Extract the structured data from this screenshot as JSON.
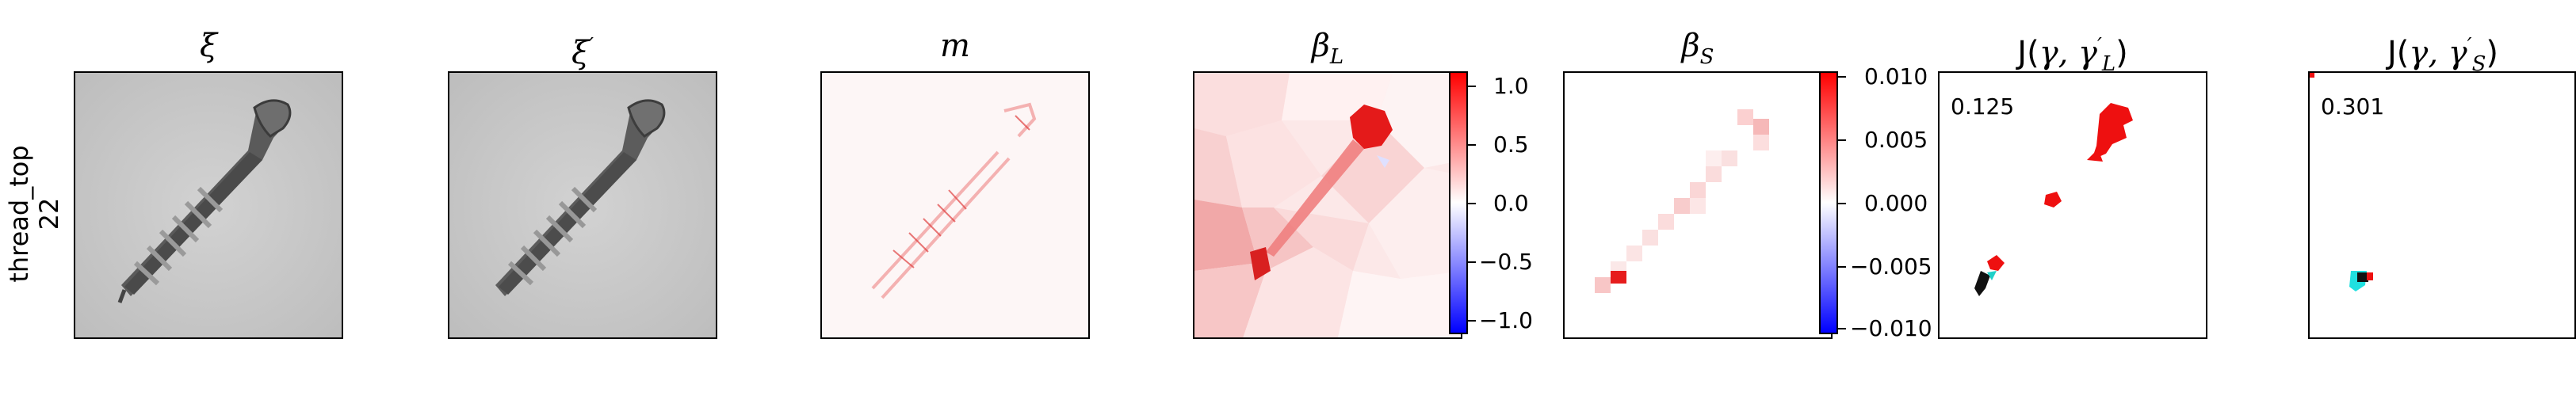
{
  "row_label": {
    "line1": "thread_top",
    "line2": "22"
  },
  "panels": {
    "xi": {
      "title": "ξ"
    },
    "xi_prime": {
      "title": "ξ",
      "title_sup": "′"
    },
    "m": {
      "title": "m"
    },
    "beta_L": {
      "title": "β",
      "title_sub": "L"
    },
    "beta_S": {
      "title": "β",
      "title_sub": "S"
    },
    "j_L": {
      "title_prefix": "J(",
      "title_mid": "γ, γ",
      "title_sup": "′",
      "title_sub": "L",
      "title_suffix": ")",
      "score": "0.125"
    },
    "j_S": {
      "title_prefix": "J(",
      "title_mid": "γ, γ",
      "title_sup": "′",
      "title_sub": "S",
      "title_suffix": ")",
      "score": "0.301"
    }
  },
  "colorbar_L": {
    "ticks": [
      "1.0",
      "0.5",
      "0.0",
      "−0.5",
      "−1.0"
    ],
    "colors": {
      "pos": "#ff0000",
      "neg": "#0000ff"
    }
  },
  "colorbar_S": {
    "ticks": [
      "0.010",
      "0.005",
      "0.000",
      "−0.005",
      "−0.010"
    ],
    "colors": {
      "pos": "#ff0000",
      "neg": "#0000ff"
    }
  }
}
